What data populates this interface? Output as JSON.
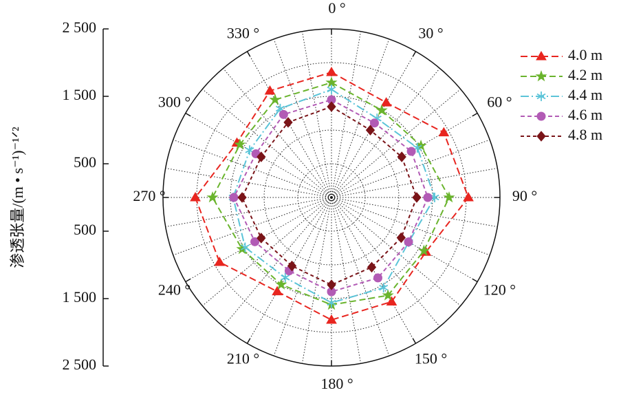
{
  "chart_data": {
    "type": "polar",
    "y_label": "渗透张量/(m • s⁻¹)⁻¹ᐟ²",
    "ylim": [
      -2500,
      2500
    ],
    "yticks": [
      {
        "value": 2500,
        "label": "2 500"
      },
      {
        "value": 1500,
        "label": "1 500"
      },
      500,
      {
        "value": -500,
        "label": "500"
      },
      {
        "value": -1500,
        "label": "1 500"
      },
      {
        "value": -2500,
        "label": "2 500"
      }
    ],
    "rlim": [
      0,
      2500
    ],
    "rgrid": [
      500,
      1000,
      1500,
      2000,
      2500
    ],
    "spoke_step": 10,
    "thetaticks": [
      {
        "value": 0,
        "label": "0 °"
      },
      {
        "value": 30,
        "label": "30 °"
      },
      {
        "value": 60,
        "label": "60 °"
      },
      {
        "value": 90,
        "label": "90 °"
      },
      {
        "value": 120,
        "label": "120 °"
      },
      {
        "value": 150,
        "label": "150 °"
      },
      {
        "value": 180,
        "label": "180 °"
      },
      {
        "value": 210,
        "label": "210 °"
      },
      {
        "value": 240,
        "label": "240 °"
      },
      {
        "value": 270,
        "label": "270 °"
      },
      {
        "value": 300,
        "label": "300 °"
      },
      {
        "value": 330,
        "label": "330 °"
      }
    ],
    "theta": [
      0,
      30,
      60,
      90,
      120,
      150,
      180,
      210,
      240,
      270,
      300,
      330
    ],
    "legend": "upper right",
    "series": [
      {
        "name": "4.0 m",
        "color": "#e8251f",
        "marker": "triangle",
        "values": [
          1857,
          1625,
          1925,
          2031,
          1617,
          1785,
          1816,
          1610,
          1918,
          2020,
          1620,
          1826
        ]
      },
      {
        "name": "4.2 m",
        "color": "#6ab42d",
        "marker": "star",
        "values": [
          1704,
          1492,
          1533,
          1745,
          1583,
          1677,
          1592,
          1491,
          1531,
          1765,
          1569,
          1673
        ]
      },
      {
        "name": "4.4 m",
        "color": "#5bc4d8",
        "marker": "asterisk",
        "values": [
          1602,
          1353,
          1472,
          1531,
          1324,
          1545,
          1561,
          1372,
          1480,
          1459,
          1402,
          1521
        ]
      },
      {
        "name": "4.6 m",
        "color": "#b25bb5",
        "marker": "circle",
        "values": [
          1449,
          1275,
          1368,
          1429,
          1320,
          1377,
          1398,
          1256,
          1313,
          1449,
          1295,
          1421
        ]
      },
      {
        "name": "4.8 m",
        "color": "#7a1418",
        "marker": "diamond",
        "values": [
          1347,
          1153,
          1204,
          1265,
          1194,
          1194,
          1296,
          1173,
          1204,
          1326,
          1204,
          1286
        ]
      }
    ]
  }
}
